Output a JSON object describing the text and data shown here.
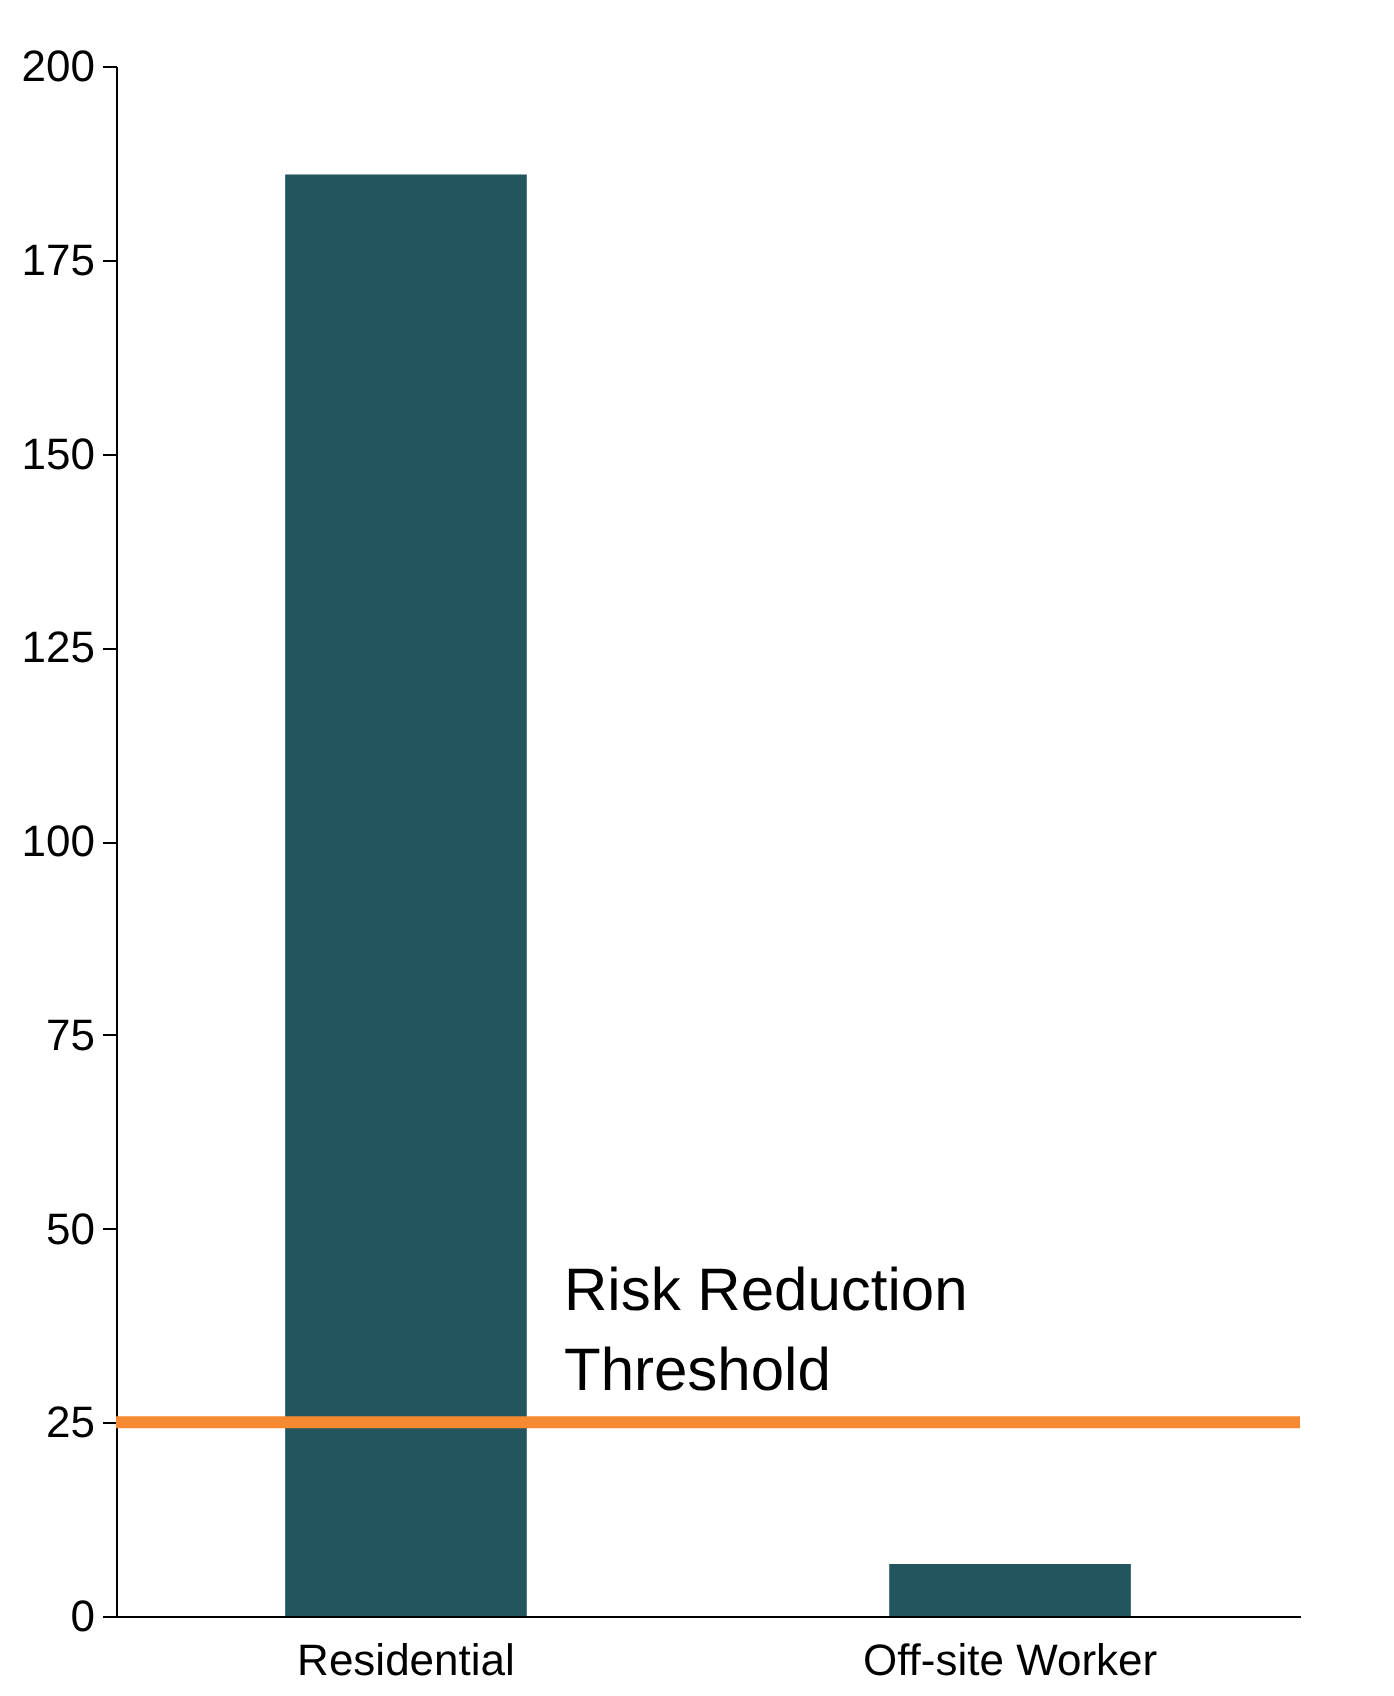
{
  "chart_data": {
    "type": "bar",
    "categories": [
      "Residential",
      "Off-site Worker"
    ],
    "series": [
      {
        "color": "#22555e",
        "values": [
          186,
          6.7
        ]
      }
    ],
    "ylim": [
      0,
      200
    ],
    "yticks": [
      0,
      25,
      50,
      75,
      100,
      125,
      150,
      175,
      200
    ],
    "grid": false,
    "ref_lines": [
      {
        "axis": "y",
        "value": 25,
        "label": "Risk Reduction\nThreshold",
        "color": "#f58a33",
        "line_style": "solid"
      }
    ]
  }
}
